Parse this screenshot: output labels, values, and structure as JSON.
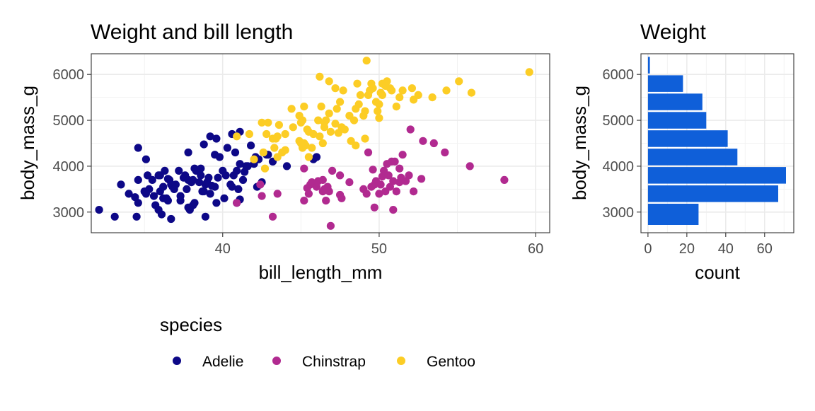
{
  "chart_data": [
    {
      "type": "scatter",
      "title": "Weight and bill length",
      "xlabel": "bill_length_mm",
      "ylabel": "body_mass_g",
      "xlim": [
        31.6,
        60.9
      ],
      "ylim": [
        2550,
        6450
      ],
      "x_ticks": [
        40,
        50,
        60
      ],
      "y_ticks": [
        3000,
        4000,
        5000,
        6000
      ],
      "grid": true,
      "legend": {
        "title": "species",
        "position": "bottom"
      },
      "series": [
        {
          "name": "Adelie",
          "color": "#0D0887",
          "points": [
            [
              32.1,
              3050
            ],
            [
              33.1,
              2900
            ],
            [
              33.5,
              3600
            ],
            [
              34.0,
              3400
            ],
            [
              34.4,
              3325
            ],
            [
              34.5,
              2900
            ],
            [
              34.6,
              4400
            ],
            [
              34.6,
              3200
            ],
            [
              35.0,
              3450
            ],
            [
              35.1,
              4150
            ],
            [
              35.2,
              3800
            ],
            [
              35.3,
              3500
            ],
            [
              35.5,
              3700
            ],
            [
              35.6,
              3350
            ],
            [
              35.7,
              3150
            ],
            [
              35.9,
              3800
            ],
            [
              35.9,
              3050
            ],
            [
              36.0,
              3450
            ],
            [
              36.0,
              3800
            ],
            [
              36.2,
              3550
            ],
            [
              36.2,
              3300
            ],
            [
              36.3,
              3900
            ],
            [
              36.4,
              3300
            ],
            [
              36.5,
              3725
            ],
            [
              36.6,
              3700
            ],
            [
              36.7,
              3600
            ],
            [
              36.8,
              3550
            ],
            [
              36.9,
              3500
            ],
            [
              37.0,
              3600
            ],
            [
              37.2,
              3900
            ],
            [
              37.3,
              3350
            ],
            [
              37.5,
              3750
            ],
            [
              37.6,
              3800
            ],
            [
              37.7,
              3500
            ],
            [
              37.8,
              3700
            ],
            [
              37.8,
              4300
            ],
            [
              38.0,
              3650
            ],
            [
              38.1,
              3700
            ],
            [
              38.2,
              3950
            ],
            [
              38.3,
              3900
            ],
            [
              38.5,
              3650
            ],
            [
              38.6,
              3800
            ],
            [
              38.6,
              3950
            ],
            [
              38.7,
              3450
            ],
            [
              38.8,
              3450
            ],
            [
              38.9,
              3600
            ],
            [
              39.0,
              3650
            ],
            [
              39.1,
              3750
            ],
            [
              39.2,
              4650
            ],
            [
              39.2,
              3400
            ],
            [
              39.3,
              3575
            ],
            [
              39.5,
              3550
            ],
            [
              39.6,
              4600
            ],
            [
              39.7,
              3750
            ],
            [
              39.8,
              4200
            ],
            [
              40.0,
              3900
            ],
            [
              40.2,
              3800
            ],
            [
              40.3,
              4400
            ],
            [
              40.5,
              3600
            ],
            [
              40.6,
              3550
            ],
            [
              40.7,
              3800
            ],
            [
              40.8,
              4300
            ],
            [
              40.9,
              3900
            ],
            [
              41.0,
              3500
            ],
            [
              41.1,
              4050
            ],
            [
              41.3,
              3700
            ],
            [
              41.4,
              3875
            ],
            [
              41.5,
              4000
            ],
            [
              41.6,
              4000
            ],
            [
              41.8,
              4450
            ],
            [
              42.0,
              4050
            ],
            [
              42.1,
              4200
            ],
            [
              42.2,
              3550
            ],
            [
              42.3,
              4150
            ],
            [
              42.5,
              3650
            ],
            [
              42.8,
              4250
            ],
            [
              42.9,
              4250
            ],
            [
              43.2,
              4100
            ],
            [
              44.1,
              4000
            ],
            [
              45.8,
              4150
            ],
            [
              46.0,
              4200
            ],
            [
              35.1,
              3400
            ],
            [
              36.1,
              2950
            ],
            [
              36.7,
              2850
            ],
            [
              38.1,
              3150
            ],
            [
              38.9,
              2900
            ],
            [
              39.6,
              3200
            ],
            [
              37.9,
              3050
            ],
            [
              36.5,
              3250
            ],
            [
              40.1,
              3300
            ],
            [
              40.9,
              3200
            ],
            [
              41.1,
              3275
            ],
            [
              39.5,
              4250
            ],
            [
              38.8,
              4475
            ],
            [
              40.6,
              4700
            ],
            [
              41.1,
              4750
            ],
            [
              37.8,
              3100
            ],
            [
              34.6,
              3700
            ],
            [
              38.2,
              3200
            ],
            [
              37.3,
              3250
            ]
          ]
        },
        {
          "name": "Chinstrap",
          "color": "#B12A90",
          "points": [
            [
              40.9,
              3200
            ],
            [
              42.4,
              3600
            ],
            [
              42.5,
              3350
            ],
            [
              43.2,
              2900
            ],
            [
              43.5,
              3400
            ],
            [
              45.2,
              3250
            ],
            [
              45.2,
              3950
            ],
            [
              45.4,
              3525
            ],
            [
              45.5,
              3400
            ],
            [
              45.6,
              3600
            ],
            [
              45.7,
              3650
            ],
            [
              46.0,
              3550
            ],
            [
              46.1,
              3675
            ],
            [
              46.4,
              3450
            ],
            [
              46.4,
              3700
            ],
            [
              46.5,
              3500
            ],
            [
              46.6,
              3250
            ],
            [
              46.7,
              3550
            ],
            [
              46.8,
              3450
            ],
            [
              46.9,
              2700
            ],
            [
              47.0,
              3900
            ],
            [
              47.5,
              3375
            ],
            [
              47.6,
              3300
            ],
            [
              48.1,
              3650
            ],
            [
              49.0,
              3500
            ],
            [
              49.2,
              3400
            ],
            [
              49.3,
              4300
            ],
            [
              49.5,
              3550
            ],
            [
              49.6,
              3925
            ],
            [
              49.7,
              3600
            ],
            [
              49.8,
              3675
            ],
            [
              50.0,
              3400
            ],
            [
              50.1,
              3600
            ],
            [
              50.2,
              3775
            ],
            [
              50.3,
              3900
            ],
            [
              50.4,
              3450
            ],
            [
              50.5,
              4050
            ],
            [
              50.6,
              3800
            ],
            [
              50.7,
              3550
            ],
            [
              50.8,
              4100
            ],
            [
              50.9,
              3675
            ],
            [
              51.0,
              4100
            ],
            [
              51.1,
              3450
            ],
            [
              51.3,
              3650
            ],
            [
              51.4,
              3750
            ],
            [
              51.5,
              4250
            ],
            [
              51.7,
              3675
            ],
            [
              51.9,
              3800
            ],
            [
              52.0,
              4800
            ],
            [
              52.2,
              3450
            ],
            [
              52.7,
              3725
            ],
            [
              52.8,
              4550
            ],
            [
              53.5,
              4500
            ],
            [
              54.2,
              4300
            ],
            [
              55.8,
              4000
            ],
            [
              58.0,
              3700
            ],
            [
              51.3,
              3950
            ],
            [
              50.9,
              3050
            ],
            [
              49.7,
              3100
            ],
            [
              47.5,
              3800
            ]
          ]
        },
        {
          "name": "Gentoo",
          "color": "#FCCD25",
          "points": [
            [
              40.9,
              4650
            ],
            [
              41.7,
              4700
            ],
            [
              42.0,
              4150
            ],
            [
              42.6,
              4300
            ],
            [
              42.7,
              3950
            ],
            [
              42.8,
              4700
            ],
            [
              42.9,
              4950
            ],
            [
              43.2,
              4600
            ],
            [
              43.3,
              4400
            ],
            [
              43.4,
              4600
            ],
            [
              43.5,
              4650
            ],
            [
              43.6,
              4900
            ],
            [
              43.8,
              4300
            ],
            [
              44.0,
              4350
            ],
            [
              44.4,
              5250
            ],
            [
              44.5,
              4850
            ],
            [
              44.9,
              5100
            ],
            [
              45.0,
              4950
            ],
            [
              45.1,
              5000
            ],
            [
              45.2,
              4500
            ],
            [
              45.2,
              5300
            ],
            [
              45.3,
              4450
            ],
            [
              45.4,
              4800
            ],
            [
              45.5,
              4200
            ],
            [
              45.5,
              4750
            ],
            [
              45.7,
              4400
            ],
            [
              45.8,
              4700
            ],
            [
              46.1,
              5000
            ],
            [
              46.2,
              4650
            ],
            [
              46.3,
              5300
            ],
            [
              46.4,
              4500
            ],
            [
              46.5,
              4850
            ],
            [
              46.6,
              5000
            ],
            [
              46.8,
              5150
            ],
            [
              46.9,
              4750
            ],
            [
              47.2,
              4925
            ],
            [
              47.3,
              5250
            ],
            [
              47.4,
              4725
            ],
            [
              47.5,
              5400
            ],
            [
              47.6,
              4850
            ],
            [
              47.7,
              5650
            ],
            [
              48.1,
              5100
            ],
            [
              48.2,
              4550
            ],
            [
              48.4,
              5000
            ],
            [
              48.5,
              5250
            ],
            [
              48.6,
              5800
            ],
            [
              48.7,
              5350
            ],
            [
              48.8,
              5550
            ],
            [
              49.0,
              5100
            ],
            [
              49.1,
              5200
            ],
            [
              49.2,
              6300
            ],
            [
              49.3,
              5550
            ],
            [
              49.4,
              5650
            ],
            [
              49.5,
              5800
            ],
            [
              49.6,
              5700
            ],
            [
              49.8,
              5400
            ],
            [
              50.0,
              5350
            ],
            [
              50.1,
              5600
            ],
            [
              50.2,
              5550
            ],
            [
              50.4,
              5750
            ],
            [
              50.5,
              5850
            ],
            [
              50.7,
              5700
            ],
            [
              50.8,
              5650
            ],
            [
              51.1,
              5300
            ],
            [
              51.3,
              5500
            ],
            [
              51.5,
              5650
            ],
            [
              52.1,
              5700
            ],
            [
              52.2,
              5450
            ],
            [
              52.5,
              5550
            ],
            [
              53.4,
              5500
            ],
            [
              54.3,
              5650
            ],
            [
              55.1,
              5850
            ],
            [
              55.9,
              5600
            ],
            [
              59.6,
              6050
            ],
            [
              45.1,
              4400
            ],
            [
              44.0,
              4700
            ],
            [
              46.2,
              5950
            ],
            [
              47.2,
              5700
            ],
            [
              49.1,
              4600
            ],
            [
              50.2,
              5800
            ],
            [
              42.5,
              4950
            ],
            [
              44.9,
              4550
            ],
            [
              46.5,
              4950
            ],
            [
              48.5,
              4450
            ],
            [
              45.0,
              4500
            ],
            [
              43.5,
              4200
            ],
            [
              46.8,
              5850
            ],
            [
              47.8,
              4800
            ],
            [
              49.9,
              5200
            ],
            [
              50.0,
              5050
            ]
          ]
        }
      ]
    },
    {
      "type": "bar",
      "orientation": "horizontal",
      "title": "Weight",
      "xlabel": "count",
      "ylabel": "body_mass_g",
      "bar_color": "#0F5FD9",
      "xlim": [
        -3.6,
        75
      ],
      "ylim": [
        2550,
        6450
      ],
      "x_ticks": [
        0,
        20,
        40,
        60
      ],
      "y_ticks": [
        3000,
        4000,
        5000,
        6000
      ],
      "grid": true,
      "bins": [
        {
          "from": 2700,
          "to": 3200,
          "count": 26
        },
        {
          "from": 3200,
          "to": 3600,
          "count": 67
        },
        {
          "from": 3600,
          "to": 4000,
          "count": 71
        },
        {
          "from": 4000,
          "to": 4400,
          "count": 46
        },
        {
          "from": 4400,
          "to": 4800,
          "count": 41
        },
        {
          "from": 4800,
          "to": 5200,
          "count": 30
        },
        {
          "from": 5200,
          "to": 5600,
          "count": 28
        },
        {
          "from": 5600,
          "to": 6000,
          "count": 18
        },
        {
          "from": 6000,
          "to": 6400,
          "count": 1
        }
      ]
    }
  ]
}
